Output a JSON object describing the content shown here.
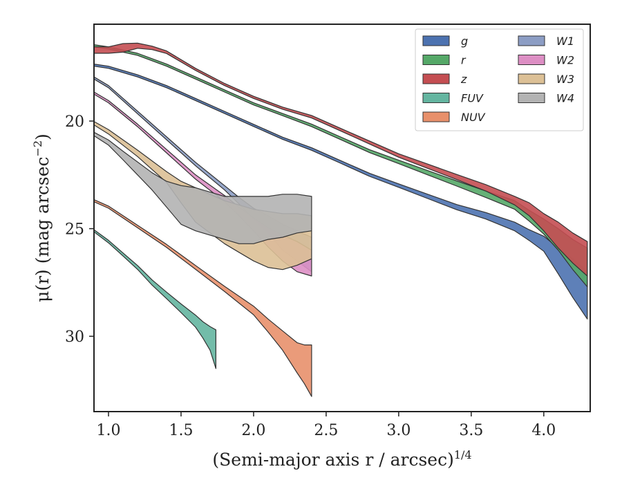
{
  "chart_data": {
    "type": "area",
    "xlabel": "(Semi-major axis r / arcsec)",
    "xlabel_sup": "1/4",
    "ylabel": "μ(r) (mag arcsec",
    "ylabel_sup": "−2",
    "ylabel_end": ")",
    "xlim": [
      0.9,
      4.32
    ],
    "ylim": [
      33.5,
      15.5
    ],
    "y_inverted": true,
    "xticks": [
      1.0,
      1.5,
      2.0,
      2.5,
      3.0,
      3.5,
      4.0
    ],
    "xtick_labels": [
      "1.0",
      "1.5",
      "2.0",
      "2.5",
      "3.0",
      "3.5",
      "4.0"
    ],
    "yticks": [
      20,
      25,
      30
    ],
    "ytick_labels": [
      "20",
      "25",
      "30"
    ],
    "grid": false,
    "legend_placement": "top-right",
    "legend_columns": 2,
    "series": [
      {
        "name": "g",
        "color": "#4c72b0",
        "x": [
          0.9,
          1.0,
          1.2,
          1.4,
          1.6,
          1.8,
          2.0,
          2.2,
          2.4,
          2.6,
          2.8,
          3.0,
          3.2,
          3.4,
          3.6,
          3.8,
          3.9,
          4.0,
          4.1,
          4.2,
          4.3
        ],
        "y": [
          17.4,
          17.5,
          17.9,
          18.4,
          19.0,
          19.6,
          20.2,
          20.8,
          21.3,
          21.9,
          22.5,
          23.0,
          23.5,
          24.0,
          24.4,
          24.9,
          25.3,
          25.7,
          26.5,
          27.3,
          28.1
        ],
        "hw": [
          0.05,
          0.05,
          0.05,
          0.05,
          0.05,
          0.05,
          0.05,
          0.05,
          0.06,
          0.06,
          0.07,
          0.08,
          0.1,
          0.12,
          0.15,
          0.2,
          0.25,
          0.35,
          0.6,
          0.9,
          1.1
        ]
      },
      {
        "name": "r",
        "color": "#55a868",
        "x": [
          0.9,
          1.0,
          1.2,
          1.4,
          1.6,
          1.8,
          2.0,
          2.2,
          2.4,
          2.6,
          2.8,
          3.0,
          3.2,
          3.4,
          3.6,
          3.8,
          3.9,
          4.0,
          4.1,
          4.2,
          4.3
        ],
        "y": [
          16.5,
          16.6,
          16.9,
          17.4,
          18.0,
          18.6,
          19.2,
          19.7,
          20.2,
          20.8,
          21.4,
          21.9,
          22.4,
          22.9,
          23.4,
          23.9,
          24.4,
          24.9,
          25.5,
          26.2,
          26.8
        ],
        "hw": [
          0.05,
          0.05,
          0.05,
          0.05,
          0.05,
          0.05,
          0.05,
          0.05,
          0.06,
          0.06,
          0.07,
          0.08,
          0.1,
          0.12,
          0.15,
          0.2,
          0.25,
          0.35,
          0.5,
          0.7,
          0.9
        ]
      },
      {
        "name": "z",
        "color": "#c44e52",
        "x": [
          0.9,
          1.0,
          1.1,
          1.2,
          1.3,
          1.4,
          1.6,
          1.8,
          2.0,
          2.2,
          2.4,
          2.6,
          2.8,
          3.0,
          3.2,
          3.4,
          3.6,
          3.8,
          3.9,
          4.0,
          4.1,
          4.2,
          4.3
        ],
        "y": [
          16.7,
          16.7,
          16.6,
          16.5,
          16.6,
          16.8,
          17.6,
          18.3,
          18.9,
          19.4,
          19.8,
          20.4,
          21.0,
          21.6,
          22.1,
          22.6,
          23.1,
          23.7,
          24.1,
          24.7,
          25.3,
          25.9,
          26.4
        ],
        "hw": [
          0.15,
          0.15,
          0.2,
          0.12,
          0.08,
          0.06,
          0.05,
          0.05,
          0.05,
          0.05,
          0.06,
          0.06,
          0.07,
          0.08,
          0.1,
          0.12,
          0.15,
          0.2,
          0.3,
          0.4,
          0.6,
          0.7,
          0.8
        ]
      },
      {
        "name": "FUV",
        "color": "#64b5a0",
        "x": [
          0.9,
          1.0,
          1.1,
          1.2,
          1.3,
          1.4,
          1.5,
          1.6,
          1.65,
          1.7,
          1.74
        ],
        "y": [
          25.1,
          25.6,
          26.2,
          26.8,
          27.5,
          28.1,
          28.7,
          29.3,
          29.7,
          30.1,
          30.6
        ],
        "hw": [
          0.05,
          0.06,
          0.07,
          0.09,
          0.12,
          0.15,
          0.2,
          0.28,
          0.38,
          0.55,
          0.9
        ]
      },
      {
        "name": "NUV",
        "color": "#e8906b",
        "x": [
          0.9,
          1.0,
          1.2,
          1.4,
          1.6,
          1.8,
          2.0,
          2.1,
          2.2,
          2.3,
          2.35,
          2.4
        ],
        "y": [
          23.7,
          24.0,
          24.9,
          25.8,
          26.8,
          27.8,
          28.8,
          29.5,
          30.2,
          31.0,
          31.3,
          31.6
        ],
        "hw": [
          0.05,
          0.05,
          0.06,
          0.07,
          0.09,
          0.12,
          0.2,
          0.3,
          0.45,
          0.7,
          0.9,
          1.2
        ]
      },
      {
        "name": "W1",
        "color": "#8c9dc4",
        "x": [
          0.9,
          1.0,
          1.2,
          1.4,
          1.6,
          1.8,
          1.9,
          2.0,
          2.1,
          2.2,
          2.3,
          2.4
        ],
        "y": [
          18.0,
          18.4,
          19.6,
          20.8,
          22.0,
          23.1,
          23.7,
          24.3,
          24.8,
          25.4,
          25.8,
          26.2
        ],
        "hw": [
          0.05,
          0.05,
          0.06,
          0.07,
          0.08,
          0.1,
          0.15,
          0.25,
          0.4,
          0.6,
          0.7,
          0.8
        ]
      },
      {
        "name": "W2",
        "color": "#dd8fc4",
        "x": [
          0.9,
          1.0,
          1.2,
          1.4,
          1.6,
          1.8,
          1.9,
          2.0,
          2.1,
          2.2,
          2.3,
          2.4
        ],
        "y": [
          18.7,
          19.1,
          20.2,
          21.4,
          22.6,
          23.6,
          24.2,
          24.8,
          25.4,
          25.9,
          26.3,
          26.6
        ],
        "hw": [
          0.05,
          0.05,
          0.06,
          0.08,
          0.1,
          0.14,
          0.2,
          0.3,
          0.45,
          0.6,
          0.7,
          0.6
        ]
      },
      {
        "name": "W3",
        "color": "#dcc096",
        "x": [
          0.9,
          1.0,
          1.2,
          1.4,
          1.5,
          1.6,
          1.7,
          1.8,
          1.9,
          2.0,
          2.1,
          2.2,
          2.3,
          2.4
        ],
        "y": [
          20.1,
          20.5,
          21.5,
          22.6,
          23.3,
          23.9,
          24.3,
          24.7,
          25.0,
          25.3,
          25.5,
          25.6,
          25.5,
          25.4
        ],
        "hw": [
          0.08,
          0.1,
          0.15,
          0.25,
          0.5,
          0.8,
          0.9,
          1.0,
          1.1,
          1.2,
          1.3,
          1.3,
          1.2,
          1.0
        ]
      },
      {
        "name": "W4",
        "color": "#b3b3b3",
        "x": [
          0.9,
          1.0,
          1.1,
          1.2,
          1.3,
          1.4,
          1.5,
          1.6,
          1.7,
          1.8,
          1.9,
          2.0,
          2.1,
          2.2,
          2.3,
          2.4
        ],
        "y": [
          20.6,
          21.0,
          21.6,
          22.2,
          22.8,
          23.4,
          23.9,
          24.1,
          24.3,
          24.5,
          24.6,
          24.6,
          24.5,
          24.4,
          24.3,
          24.3
        ],
        "hw": [
          0.08,
          0.12,
          0.2,
          0.3,
          0.4,
          0.6,
          0.9,
          1.0,
          1.0,
          1.0,
          1.1,
          1.1,
          1.0,
          1.0,
          0.9,
          0.8
        ]
      }
    ]
  }
}
